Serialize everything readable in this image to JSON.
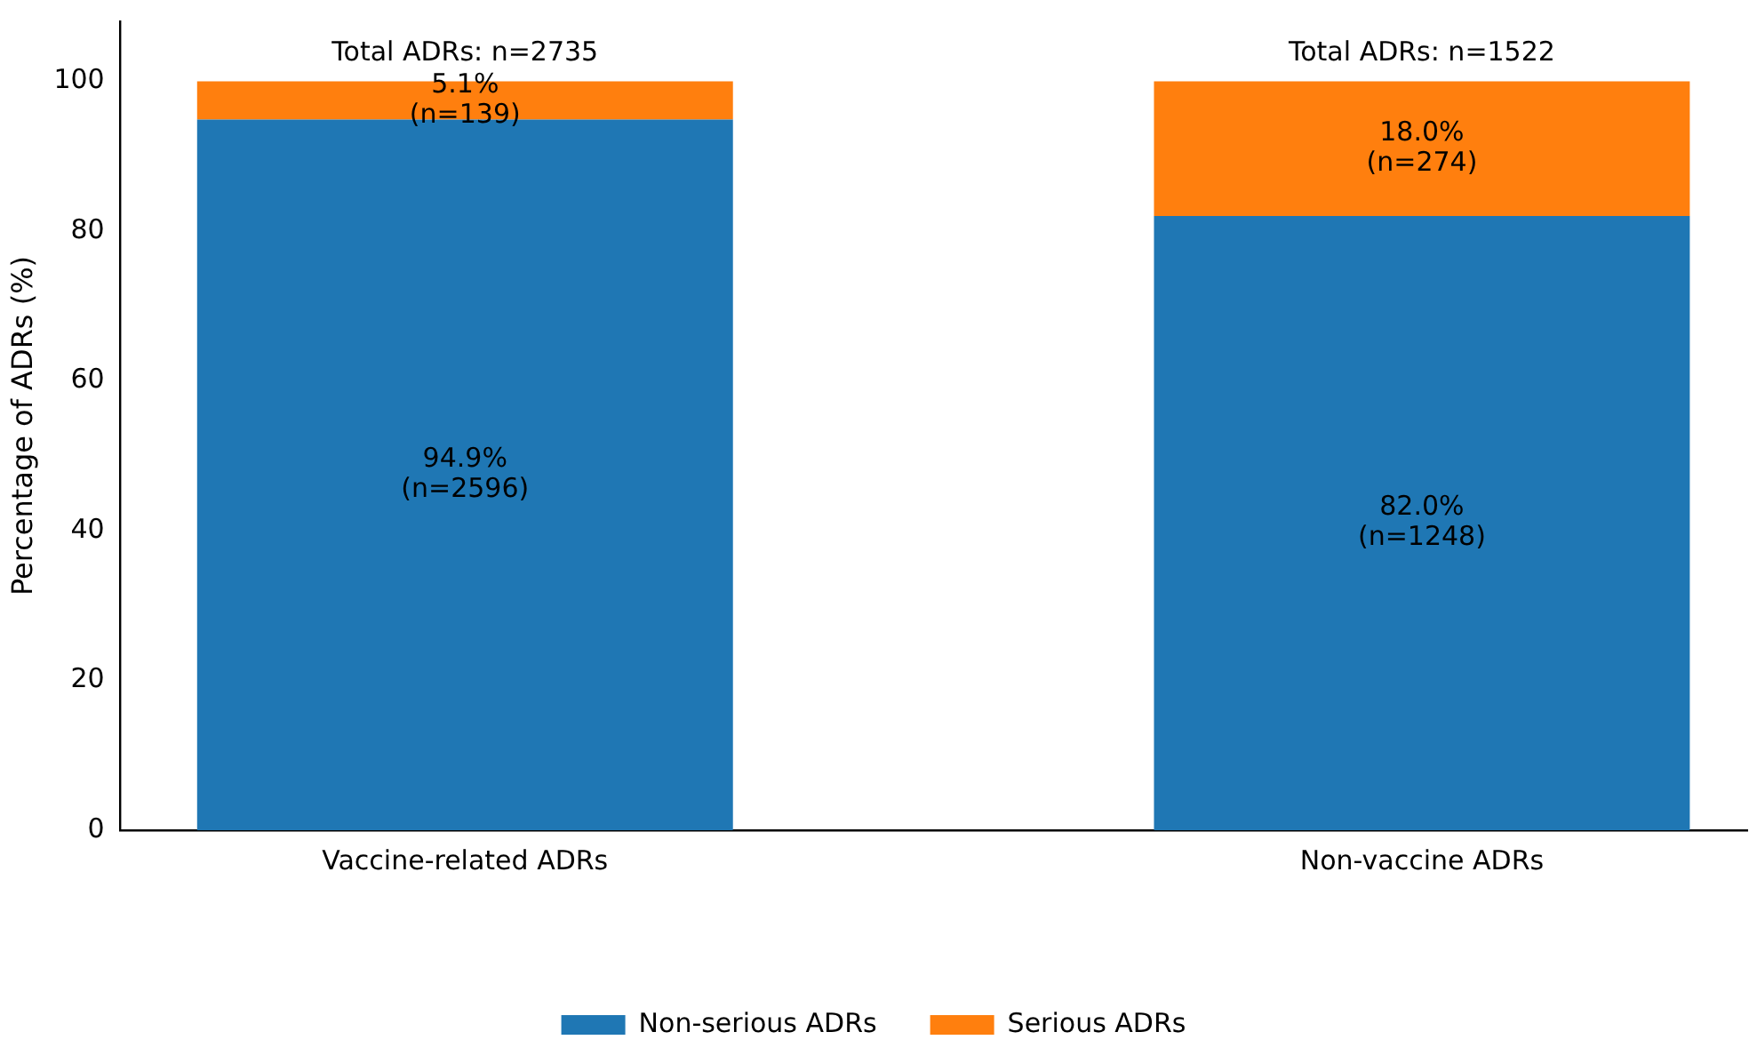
{
  "chart_data": {
    "type": "bar",
    "stacked": true,
    "ylabel": "Percentage of ADRs (%)",
    "categories": [
      "Vaccine-related ADRs",
      "Non-vaccine ADRs"
    ],
    "series": [
      {
        "name": "Non-serious ADRs",
        "color": "#1f77b4",
        "values": [
          94.9,
          82.0
        ],
        "value_labels": [
          "94.9%\n(n=2596)",
          "82.0%\n(n=1248)"
        ]
      },
      {
        "name": "Serious ADRs",
        "color": "#ff7f0e",
        "values": [
          5.1,
          18.0
        ],
        "value_labels": [
          "5.1%\n(n=139)",
          "18.0%\n(n=274)"
        ]
      }
    ],
    "annotations": [
      {
        "text": "Total ADRs: n=2735",
        "x": "Vaccine-related ADRs",
        "y": 100
      },
      {
        "text": "Total ADRs: n=1522",
        "x": "Non-vaccine ADRs",
        "y": 100
      }
    ],
    "ylim": [
      0,
      108
    ],
    "yticks": [
      0,
      20,
      40,
      60,
      80,
      100
    ],
    "grid": false,
    "legend": "bottom"
  }
}
